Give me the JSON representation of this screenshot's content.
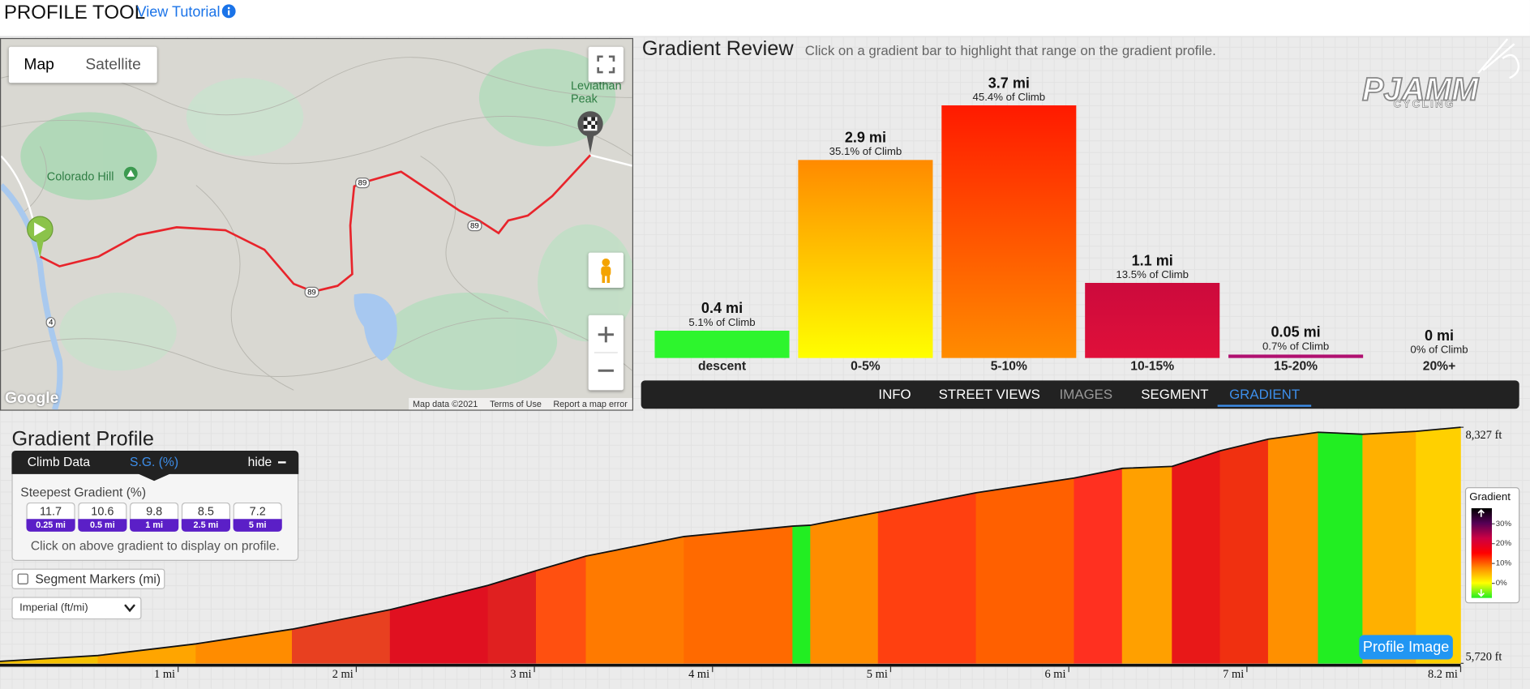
{
  "header": {
    "title": "PROFILE TOOL",
    "tutorial": "View Tutorial"
  },
  "map": {
    "buttons": [
      "Map",
      "Satellite"
    ],
    "places": [
      "Colorado Hill",
      "Leviathan Peak"
    ],
    "shields": [
      "89",
      "89",
      "89",
      "4"
    ],
    "footer": [
      "Map data ©2021",
      "Terms of Use",
      "Report a map error"
    ],
    "logo": "Google"
  },
  "logo": {
    "name": "PJAMM",
    "sub": "CYCLING"
  },
  "chart_data": [
    {
      "type": "bar",
      "title": "Gradient Review",
      "subtitle": "Click on a gradient bar to highlight that range on the gradient profile.",
      "categories": [
        "descent",
        "0-5%",
        "5-10%",
        "10-15%",
        "15-20%",
        "20%+"
      ],
      "values": [
        0.4,
        2.9,
        3.7,
        1.1,
        0.05,
        0
      ],
      "value_labels": [
        "0.4 mi",
        "2.9 mi",
        "3.7 mi",
        "1.1 mi",
        "0.05 mi",
        "0 mi"
      ],
      "percent_labels": [
        "5.1% of Climb",
        "35.1% of Climb",
        "45.4% of Climb",
        "13.5% of Climb",
        "0.7% of Climb",
        "0% of Climb"
      ],
      "colors": [
        [
          "#2df52d",
          "#2df52d"
        ],
        [
          "#ff8a00",
          "#ffff00"
        ],
        [
          "#ff1a00",
          "#ff8c00"
        ],
        [
          "#cc0a3c",
          "#e0103a"
        ],
        [
          "#b01070",
          "#b01070"
        ],
        [
          "#800080",
          "#800080"
        ]
      ]
    },
    {
      "type": "area",
      "title": "Gradient Profile",
      "x": [
        0,
        0.55,
        1.1,
        1.64,
        2.19,
        2.74,
        3.01,
        3.29,
        3.84,
        4.45,
        4.55,
        4.93,
        5.48,
        6.03,
        6.3,
        6.58,
        6.85,
        7.12,
        7.4,
        7.65,
        7.95,
        8.2
      ],
      "values": [
        5742,
        5806,
        5935,
        6097,
        6312,
        6581,
        6743,
        6904,
        7120,
        7235,
        7245,
        7389,
        7604,
        7766,
        7873,
        7895,
        8067,
        8196,
        8272,
        8250,
        8282,
        8327
      ],
      "segment_colors": [
        "#f5c000",
        "#ffa500",
        "#ff8c00",
        "#e84020",
        "#e01020",
        "#e02020",
        "#ff5010",
        "#ff7a00",
        "#ff6a00",
        "#22ee22",
        "#ff8c00",
        "#ff4010",
        "#ff6000",
        "#ff3020",
        "#ffa000",
        "#e81818",
        "#f03010",
        "#ff9000",
        "#22ee22",
        "#ffb000",
        "#ffd000"
      ],
      "xlim": [
        0,
        8.2
      ],
      "ylim": [
        5720,
        8327
      ],
      "xticks": [
        {
          "value": 1,
          "label": "1 mi"
        },
        {
          "value": 2,
          "label": "2 mi"
        },
        {
          "value": 3,
          "label": "3 mi"
        },
        {
          "value": 4,
          "label": "4 mi"
        },
        {
          "value": 5,
          "label": "5 mi"
        },
        {
          "value": 6,
          "label": "6 mi"
        },
        {
          "value": 7,
          "label": "7 mi"
        },
        {
          "value": 8.2,
          "label": "8.2 mi"
        }
      ],
      "yticks": [
        {
          "value": 5720,
          "label": "5,720 ft"
        },
        {
          "value": 8327,
          "label": "8,327 ft"
        }
      ],
      "colorbar": {
        "title": "Gradient",
        "ticks": [
          {
            "value": 30,
            "label": "30%"
          },
          {
            "value": 20,
            "label": "20%"
          },
          {
            "value": 10,
            "label": "10%"
          },
          {
            "value": 0,
            "label": "0%"
          }
        ],
        "colors": [
          "#22ee22",
          "#ffff00",
          "#ff8c00",
          "#ff0000",
          "#cc0044",
          "#550055",
          "#000000"
        ]
      }
    }
  ],
  "tabs": [
    "INFO",
    "STREET VIEWS",
    "IMAGES",
    "SEGMENT",
    "GRADIENT"
  ],
  "climb_panel": {
    "tab": "Climb Data",
    "active_tab": "S.G. (%)",
    "hide": "hide",
    "heading": "Steepest Gradient (%)",
    "values": [
      11.7,
      10.6,
      9.8,
      8.5,
      7.2
    ],
    "distances": [
      "0.25 mi",
      "0.5 mi",
      "1 mi",
      "2.5 mi",
      "5 mi"
    ],
    "hint": "Click on above gradient to display on profile."
  },
  "controls": {
    "segment_markers": "Segment Markers (mi)",
    "units": "Imperial (ft/mi)",
    "profile_image": "Profile Image"
  }
}
